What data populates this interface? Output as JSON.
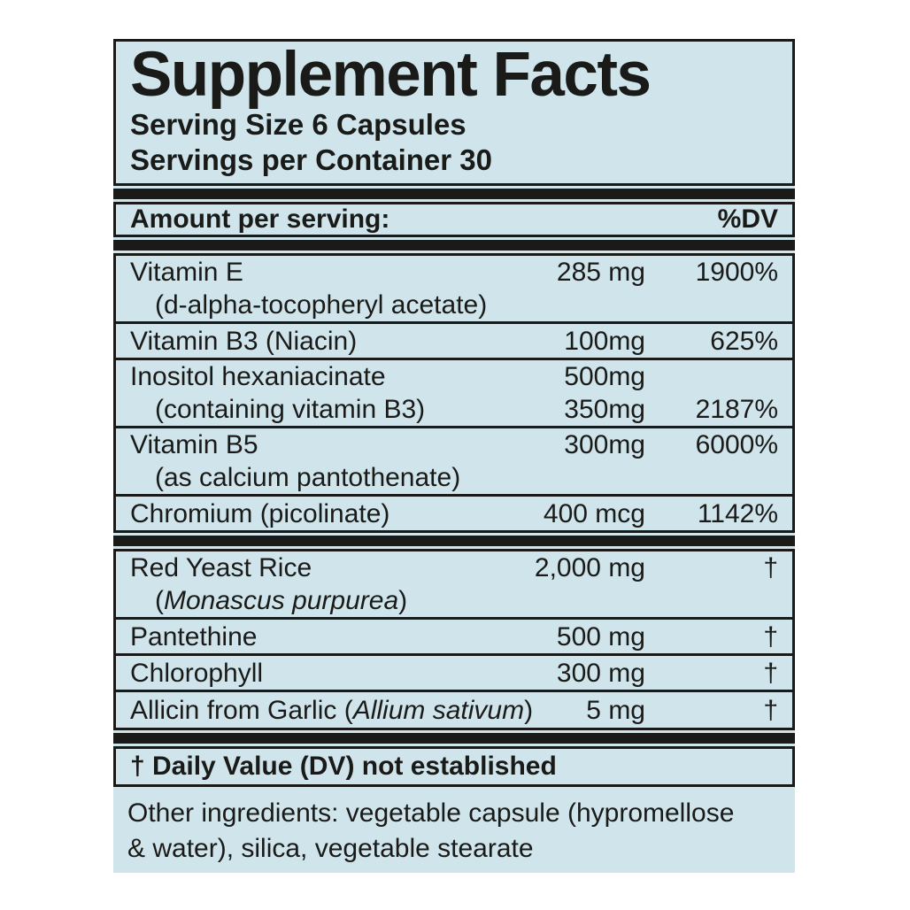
{
  "label": {
    "title": "Supplement Facts",
    "serving_size": "Serving Size 6 Capsules",
    "servings_per_container": "Servings per Container 30",
    "header": {
      "amount_label": "Amount per serving:",
      "dv_label": "%DV"
    },
    "main_rows": [
      {
        "name": "Vitamin E",
        "amount": "285 mg",
        "dv": "1900%",
        "sub": "(d-alpha-tocopheryl acetate)"
      },
      {
        "name": "Vitamin B3 (Niacin)",
        "amount": "100mg",
        "dv": "625%"
      },
      {
        "name": "Inositol hexaniacinate",
        "amount": "500mg",
        "dv": "",
        "sub": "(containing vitamin B3)",
        "sub_amount": "350mg",
        "sub_dv": "2187%"
      },
      {
        "name": "Vitamin B5",
        "amount": "300mg",
        "dv": "6000%",
        "sub": "(as calcium pantothenate)"
      },
      {
        "name": "Chromium (picolinate)",
        "amount": "400 mcg",
        "dv": "1142%"
      }
    ],
    "botanical_rows": [
      {
        "name": "Red Yeast Rice",
        "amount": "2,000 mg",
        "dv": "†",
        "sub_prefix": "(",
        "sub_italic": "Monascus purpurea",
        "sub_suffix": ")"
      },
      {
        "name": "Pantethine",
        "amount": "500 mg",
        "dv": "†"
      },
      {
        "name": "Chlorophyll",
        "amount": "300 mg",
        "dv": "†"
      },
      {
        "name_prefix": "Allicin from Garlic (",
        "name_italic": "Allium sativum",
        "name_suffix": ")",
        "amount": "5 mg",
        "dv": "†"
      }
    ],
    "footnote": "† Daily Value (DV) not established",
    "other_ingredients_lines": [
      "Other ingredients: vegetable capsule (hypromellose",
      "& water), silica, vegetable stearate"
    ],
    "colors": {
      "background": "#cfe5eb",
      "ink": "#1a1a18",
      "page": "#ffffff"
    }
  }
}
